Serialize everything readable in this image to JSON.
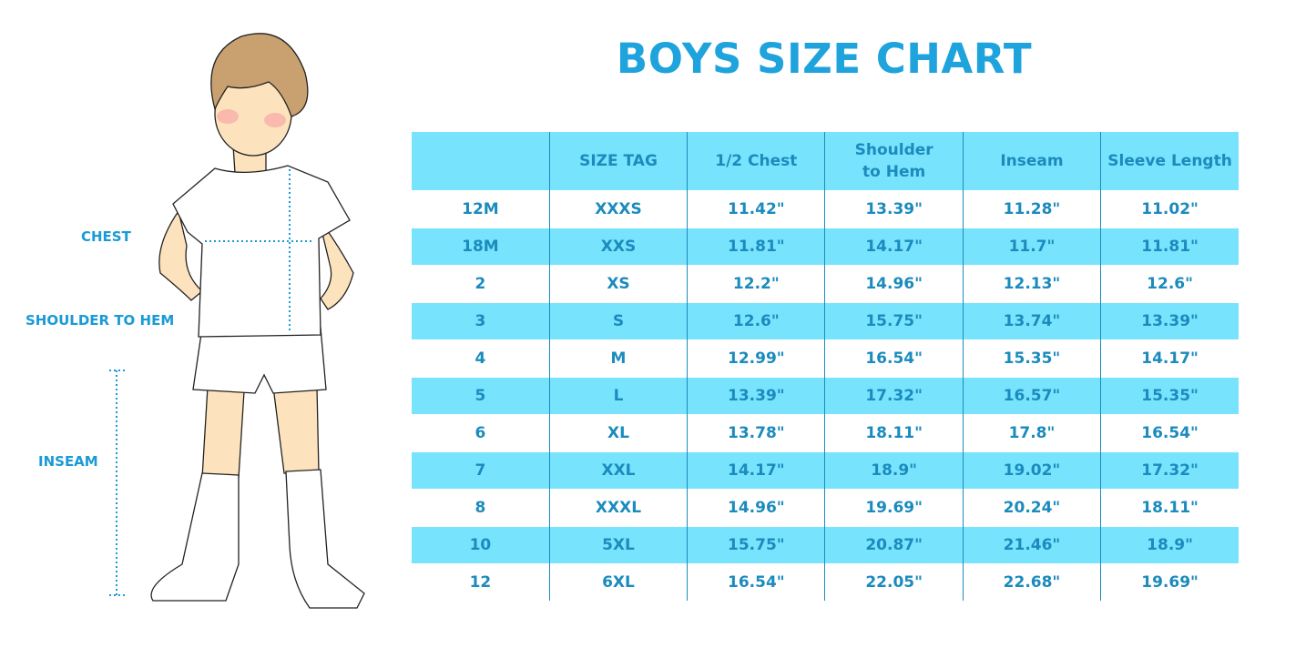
{
  "title": "BOYS SIZE CHART",
  "figure_labels": {
    "chest": "CHEST",
    "shoulder_to_hem": "SHOULDER TO HEM",
    "inseam": "INSEAM"
  },
  "colors": {
    "title": "#1ea3dd",
    "row_highlight": "#78e3fd",
    "text": "#1b8bbd"
  },
  "table": {
    "headers": [
      "",
      "SIZE TAG",
      "1/2 Chest",
      "Shoulder to Hem",
      "Inseam",
      "Sleeve Length"
    ],
    "rows": [
      [
        "12M",
        "XXXS",
        "11.42\"",
        "13.39\"",
        "11.28\"",
        "11.02\""
      ],
      [
        "18M",
        "XXS",
        "11.81\"",
        "14.17\"",
        "11.7\"",
        "11.81\""
      ],
      [
        "2",
        "XS",
        "12.2\"",
        "14.96\"",
        "12.13\"",
        "12.6\""
      ],
      [
        "3",
        "S",
        "12.6\"",
        "15.75\"",
        "13.74\"",
        "13.39\""
      ],
      [
        "4",
        "M",
        "12.99\"",
        "16.54\"",
        "15.35\"",
        "14.17\""
      ],
      [
        "5",
        "L",
        "13.39\"",
        "17.32\"",
        "16.57\"",
        "15.35\""
      ],
      [
        "6",
        "XL",
        "13.78\"",
        "18.11\"",
        "17.8\"",
        "16.54\""
      ],
      [
        "7",
        "XXL",
        "14.17\"",
        "18.9\"",
        "19.02\"",
        "17.32\""
      ],
      [
        "8",
        "XXXL",
        "14.96\"",
        "19.69\"",
        "20.24\"",
        "18.11\""
      ],
      [
        "10",
        "5XL",
        "15.75\"",
        "20.87\"",
        "21.46\"",
        "18.9\""
      ],
      [
        "12",
        "6XL",
        "16.54\"",
        "22.05\"",
        "22.68\"",
        "19.69\""
      ]
    ]
  }
}
